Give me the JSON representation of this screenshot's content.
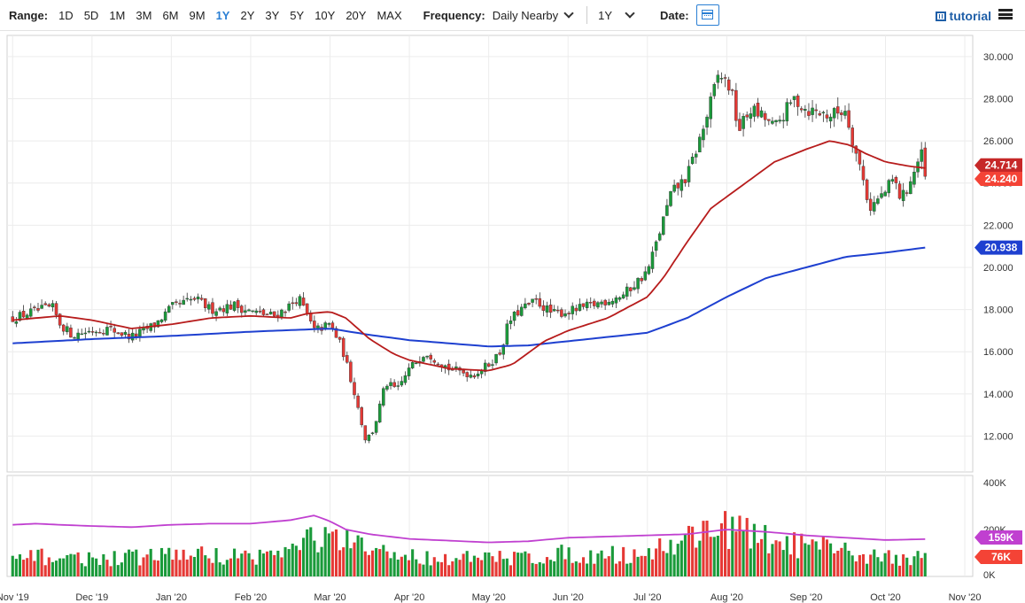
{
  "toolbar": {
    "range_label": "Range:",
    "ranges": [
      "1D",
      "5D",
      "1M",
      "3M",
      "6M",
      "9M",
      "1Y",
      "2Y",
      "3Y",
      "5Y",
      "10Y",
      "20Y",
      "MAX"
    ],
    "active_range": "1Y",
    "frequency_label": "Frequency:",
    "frequency_value": "Daily Nearby",
    "period_value": "1Y",
    "date_label": "Date:",
    "tutorial_label": "tutorial",
    "icons": [
      "calendar-icon",
      "film-icon",
      "hamburger-menu-icon",
      "chevron-down-icon"
    ]
  },
  "chart_data": {
    "type": "candlestick",
    "price": {
      "y_ticks": [
        "30.000",
        "28.000",
        "26.000",
        "24.000",
        "22.000",
        "20.000",
        "18.000",
        "16.000",
        "14.000",
        "12.000"
      ],
      "ylim": [
        10.3,
        31.0
      ],
      "x_ticks": [
        "Nov '19",
        "Dec '19",
        "Jan '20",
        "Feb '20",
        "Mar '20",
        "Apr '20",
        "May '20",
        "Jun '20",
        "Jul '20",
        "Aug '20",
        "Sep '20",
        "Oct '20",
        "Nov '20"
      ],
      "xlim": [
        -0.07,
        12.1
      ],
      "markers": [
        {
          "label": "24.714",
          "value": 24.714,
          "color": "#c62828"
        },
        {
          "label": "24.240",
          "value": 24.24,
          "color": "#f44336"
        },
        {
          "label": "20.938",
          "value": 20.938,
          "color": "#1e40d0"
        }
      ],
      "anchors_close": [
        [
          0,
          17.6
        ],
        [
          0.1,
          17.7
        ],
        [
          0.25,
          17.9
        ],
        [
          0.5,
          18.1
        ],
        [
          0.6,
          17.3
        ],
        [
          0.75,
          16.8
        ],
        [
          1.0,
          17.0
        ],
        [
          1.2,
          17.1
        ],
        [
          1.5,
          16.7
        ],
        [
          1.8,
          17.3
        ],
        [
          2.0,
          18.1
        ],
        [
          2.3,
          18.5
        ],
        [
          2.5,
          18.0
        ],
        [
          2.8,
          18.2
        ],
        [
          3.0,
          17.9
        ],
        [
          3.3,
          17.7
        ],
        [
          3.5,
          18.2
        ],
        [
          3.6,
          18.6
        ],
        [
          3.8,
          17.0
        ],
        [
          4.0,
          17.3
        ],
        [
          4.15,
          16.2
        ],
        [
          4.3,
          14.2
        ],
        [
          4.45,
          11.8
        ],
        [
          4.55,
          12.3
        ],
        [
          4.7,
          14.5
        ],
        [
          4.85,
          14.2
        ],
        [
          5.0,
          15.2
        ],
        [
          5.2,
          16.0
        ],
        [
          5.5,
          15.2
        ],
        [
          5.8,
          14.9
        ],
        [
          6.0,
          15.4
        ],
        [
          6.15,
          16.0
        ],
        [
          6.25,
          17.4
        ],
        [
          6.4,
          18.0
        ],
        [
          6.6,
          18.4
        ],
        [
          6.8,
          17.8
        ],
        [
          7.0,
          17.9
        ],
        [
          7.3,
          18.2
        ],
        [
          7.7,
          18.7
        ],
        [
          8.0,
          19.8
        ],
        [
          8.1,
          21.0
        ],
        [
          8.3,
          23.5
        ],
        [
          8.5,
          24.3
        ],
        [
          8.7,
          26.5
        ],
        [
          8.9,
          29.2
        ],
        [
          9.05,
          28.5
        ],
        [
          9.15,
          26.5
        ],
        [
          9.3,
          27.5
        ],
        [
          9.5,
          27.0
        ],
        [
          9.6,
          26.6
        ],
        [
          9.85,
          28.0
        ],
        [
          10.0,
          27.5
        ],
        [
          10.3,
          27.2
        ],
        [
          10.5,
          27.5
        ],
        [
          10.6,
          25.8
        ],
        [
          10.7,
          24.5
        ],
        [
          10.8,
          22.8
        ],
        [
          11.0,
          23.6
        ],
        [
          11.1,
          24.2
        ],
        [
          11.2,
          23.2
        ],
        [
          11.35,
          24.4
        ],
        [
          11.45,
          25.4
        ],
        [
          11.5,
          24.24
        ]
      ],
      "ma50_anchors": [
        [
          0,
          17.5
        ],
        [
          0.6,
          17.7
        ],
        [
          1.0,
          17.5
        ],
        [
          1.5,
          17.1
        ],
        [
          2.0,
          17.3
        ],
        [
          2.5,
          17.6
        ],
        [
          3.0,
          17.7
        ],
        [
          3.5,
          17.6
        ],
        [
          3.7,
          17.8
        ],
        [
          4.0,
          17.9
        ],
        [
          4.2,
          17.6
        ],
        [
          4.5,
          16.6
        ],
        [
          4.8,
          15.9
        ],
        [
          5.0,
          15.6
        ],
        [
          5.5,
          15.2
        ],
        [
          6.0,
          15.1
        ],
        [
          6.3,
          15.4
        ],
        [
          6.7,
          16.5
        ],
        [
          7.0,
          17.0
        ],
        [
          7.5,
          17.6
        ],
        [
          8.0,
          18.6
        ],
        [
          8.2,
          19.5
        ],
        [
          8.5,
          21.2
        ],
        [
          8.8,
          22.8
        ],
        [
          9.2,
          23.9
        ],
        [
          9.6,
          25.0
        ],
        [
          10.0,
          25.6
        ],
        [
          10.3,
          26.0
        ],
        [
          10.55,
          25.8
        ],
        [
          10.75,
          25.4
        ],
        [
          11.0,
          25.0
        ],
        [
          11.3,
          24.8
        ],
        [
          11.5,
          24.71
        ]
      ],
      "ma200_anchors": [
        [
          0,
          16.4
        ],
        [
          1.0,
          16.6
        ],
        [
          2.0,
          16.75
        ],
        [
          3.0,
          16.95
        ],
        [
          4.0,
          17.1
        ],
        [
          4.5,
          16.8
        ],
        [
          5.0,
          16.55
        ],
        [
          6.0,
          16.25
        ],
        [
          6.5,
          16.3
        ],
        [
          7.0,
          16.5
        ],
        [
          8.0,
          16.9
        ],
        [
          8.5,
          17.6
        ],
        [
          9.0,
          18.6
        ],
        [
          9.5,
          19.5
        ],
        [
          10.0,
          20.0
        ],
        [
          10.5,
          20.5
        ],
        [
          11.0,
          20.7
        ],
        [
          11.5,
          20.94
        ]
      ],
      "ma50_color": "#b71c1c",
      "ma200_color": "#1e40d0",
      "up_color": "#1a9a3a",
      "down_color": "#e53935"
    },
    "volume": {
      "y_ticks": [
        "400K",
        "200K",
        "0K"
      ],
      "ylim": [
        0,
        400000
      ],
      "markers": [
        {
          "label": "159K",
          "value": 159000,
          "color": "#c040d0"
        },
        {
          "label": "76K",
          "value": 76000,
          "color": "#f44336"
        }
      ],
      "avg_anchors": [
        [
          0,
          220
        ],
        [
          0.3,
          225
        ],
        [
          0.6,
          220
        ],
        [
          1.0,
          215
        ],
        [
          1.5,
          210
        ],
        [
          2.0,
          220
        ],
        [
          2.5,
          225
        ],
        [
          3.0,
          225
        ],
        [
          3.5,
          240
        ],
        [
          3.8,
          260
        ],
        [
          4.0,
          235
        ],
        [
          4.2,
          200
        ],
        [
          4.5,
          180
        ],
        [
          5.0,
          160
        ],
        [
          6.0,
          145
        ],
        [
          6.5,
          150
        ],
        [
          7.0,
          165
        ],
        [
          7.5,
          170
        ],
        [
          8.0,
          175
        ],
        [
          8.5,
          180
        ],
        [
          9.0,
          200
        ],
        [
          9.5,
          190
        ],
        [
          10.0,
          175
        ],
        [
          10.5,
          165
        ],
        [
          11.0,
          155
        ],
        [
          11.5,
          159
        ]
      ],
      "avg_color": "#c040d0",
      "bar_anchors": [
        [
          0,
          75
        ],
        [
          0.5,
          85
        ],
        [
          1.0,
          75
        ],
        [
          1.5,
          80
        ],
        [
          2.0,
          95
        ],
        [
          2.5,
          90
        ],
        [
          3.0,
          85
        ],
        [
          3.5,
          110
        ],
        [
          3.8,
          170
        ],
        [
          4.2,
          140
        ],
        [
          4.5,
          110
        ],
        [
          5.0,
          85
        ],
        [
          6.0,
          75
        ],
        [
          6.5,
          85
        ],
        [
          7.0,
          95
        ],
        [
          7.5,
          90
        ],
        [
          8.0,
          100
        ],
        [
          8.5,
          160
        ],
        [
          8.9,
          230
        ],
        [
          9.2,
          180
        ],
        [
          9.6,
          145
        ],
        [
          10.0,
          130
        ],
        [
          10.5,
          100
        ],
        [
          11.0,
          85
        ],
        [
          11.5,
          76
        ]
      ]
    }
  }
}
